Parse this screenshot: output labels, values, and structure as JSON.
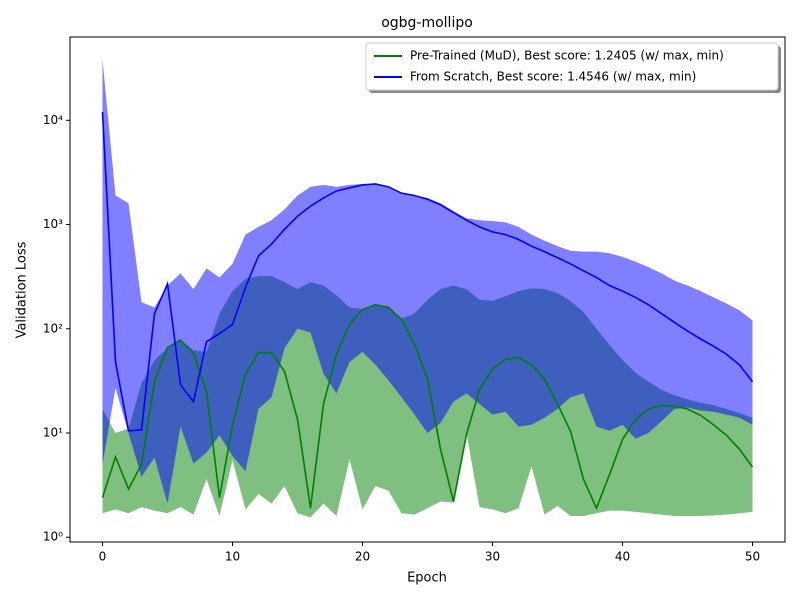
{
  "chart_data": {
    "type": "line",
    "title": "ogbg-mollipo",
    "x_label": "Epoch",
    "y_label": "Validation Loss",
    "log_y": true,
    "legend": "upper right",
    "xlim": [
      -2.5,
      52.5
    ],
    "xticks": [
      0,
      10,
      20,
      30,
      40,
      50
    ],
    "ylim": [
      0.9,
      63000
    ],
    "yticks": [
      {
        "value": 1,
        "label": "10⁰"
      },
      {
        "value": 10,
        "label": "10¹"
      },
      {
        "value": 100,
        "label": "10²"
      },
      {
        "value": 1000,
        "label": "10³"
      },
      {
        "value": 10000,
        "label": "10⁴"
      }
    ],
    "x": [
      0,
      1,
      2,
      3,
      4,
      5,
      6,
      7,
      8,
      9,
      10,
      11,
      12,
      13,
      14,
      15,
      16,
      17,
      18,
      19,
      20,
      21,
      22,
      23,
      24,
      25,
      26,
      27,
      28,
      29,
      30,
      31,
      32,
      33,
      34,
      35,
      36,
      37,
      38,
      39,
      40,
      41,
      42,
      43,
      44,
      45,
      46,
      47,
      48,
      49,
      50
    ],
    "series": [
      {
        "name": "Pre-Trained (MuD), Best score: 1.2405 (w/ max, min)",
        "color": "green",
        "values": [
          2.4,
          5.9,
          2.9,
          5,
          31,
          66,
          78,
          58,
          25,
          2.4,
          12,
          37,
          59,
          59,
          39,
          13.5,
          1.9,
          19,
          57,
          110,
          153,
          170,
          160,
          123,
          71,
          33,
          7,
          2.2,
          9.7,
          26,
          41,
          51,
          53,
          45,
          33,
          19,
          10.4,
          3.6,
          1.9,
          4,
          8.7,
          13.5,
          17,
          18.4,
          18,
          17,
          14.8,
          12,
          9.5,
          7,
          4.7
        ],
        "max": [
          17,
          10,
          11,
          30,
          50,
          65,
          78,
          62,
          60,
          140,
          230,
          300,
          320,
          320,
          280,
          240,
          280,
          260,
          210,
          160,
          155,
          170,
          165,
          125,
          140,
          190,
          240,
          260,
          240,
          190,
          185,
          205,
          230,
          245,
          240,
          220,
          185,
          145,
          100,
          70,
          50,
          38,
          31,
          26,
          23,
          21,
          19.5,
          18.5,
          17,
          15.5,
          14
        ],
        "min": [
          1.7,
          1.85,
          1.7,
          1.95,
          1.8,
          1.7,
          1.95,
          1.65,
          3.6,
          1.6,
          5.5,
          1.85,
          2.6,
          2.1,
          3.1,
          1.7,
          1.55,
          2.1,
          1.6,
          5.6,
          1.85,
          3.1,
          2.8,
          1.7,
          1.65,
          1.9,
          2.2,
          2.15,
          10,
          1.95,
          1.85,
          1.7,
          1.9,
          4.8,
          1.65,
          2,
          1.6,
          1.6,
          1.7,
          1.8,
          1.8,
          1.75,
          1.7,
          1.65,
          1.6,
          1.6,
          1.6,
          1.62,
          1.65,
          1.7,
          1.75
        ]
      },
      {
        "name": "From Scratch, Best score: 1.4546 (w/ max, min)",
        "color": "blue",
        "values": [
          12000,
          48,
          10.5,
          10.7,
          140,
          270,
          29,
          20,
          75,
          90,
          110,
          250,
          500,
          650,
          900,
          1200,
          1500,
          1800,
          2100,
          2250,
          2400,
          2450,
          2300,
          2000,
          1900,
          1750,
          1550,
          1300,
          1100,
          950,
          850,
          800,
          720,
          620,
          550,
          480,
          420,
          360,
          310,
          260,
          230,
          200,
          170,
          140,
          115,
          95,
          80,
          68,
          57,
          45,
          31
        ],
        "max": [
          38000,
          1900,
          1600,
          180,
          160,
          260,
          340,
          240,
          380,
          310,
          420,
          800,
          950,
          1100,
          1400,
          1900,
          2300,
          2400,
          2300,
          2400,
          2450,
          2450,
          2300,
          2000,
          1900,
          1800,
          1600,
          1350,
          1150,
          1100,
          1080,
          1050,
          950,
          800,
          700,
          620,
          560,
          550,
          550,
          530,
          490,
          440,
          390,
          340,
          290,
          260,
          230,
          200,
          175,
          150,
          120
        ],
        "min": [
          5,
          27,
          10,
          3.8,
          5.8,
          2.1,
          11.5,
          5.1,
          6.5,
          9.5,
          6,
          4.3,
          17,
          22,
          65,
          100,
          92,
          37,
          24,
          48,
          60,
          45,
          32,
          22,
          15,
          10,
          12.5,
          20,
          24,
          19,
          15,
          16,
          11.5,
          12,
          14,
          17,
          22,
          24,
          11.5,
          10.5,
          12,
          8.8,
          10,
          13,
          17,
          17.5,
          16.5,
          16,
          15,
          14,
          12
        ]
      }
    ]
  }
}
